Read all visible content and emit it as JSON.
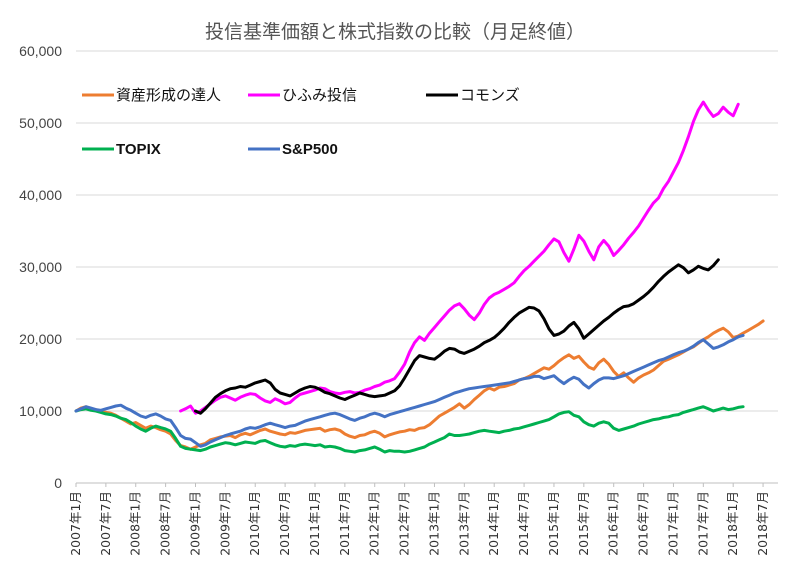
{
  "chart_data": {
    "type": "line",
    "title": "投信基準価額と株式指数の比較（月足終値）",
    "xlabel": "",
    "ylabel": "",
    "ylim": [
      0,
      60000
    ],
    "yticks": [
      0,
      10000,
      20000,
      30000,
      40000,
      50000,
      60000
    ],
    "ytick_labels": [
      "0",
      "10,000",
      "20,000",
      "30,000",
      "40,000",
      "50,000",
      "60,000"
    ],
    "grid": true,
    "legend_placement": "top-left, inside plot",
    "x_start": "2007-01",
    "x_end": "2018-10",
    "x_tick_labels": [
      "2007年1月",
      "2007年7月",
      "2008年1月",
      "2008年7月",
      "2009年1月",
      "2009年7月",
      "2010年1月",
      "2010年7月",
      "2011年1月",
      "2011年7月",
      "2012年1月",
      "2012年7月",
      "2013年1月",
      "2013年7月",
      "2014年1月",
      "2014年7月",
      "2015年1月",
      "2015年7月",
      "2016年1月",
      "2016年7月",
      "2017年1月",
      "2017年7月",
      "2018年1月",
      "2018年7月"
    ],
    "series": [
      {
        "name": "資産形成の達人",
        "color": "#ED7D31",
        "start": "2007-01",
        "values": [
          10000,
          10400,
          10600,
          10300,
          10200,
          9900,
          9800,
          9700,
          9400,
          9000,
          8600,
          8200,
          8400,
          8000,
          7600,
          7900,
          7700,
          7400,
          7200,
          6800,
          5900,
          5200,
          5000,
          4700,
          5000,
          5300,
          5500,
          6000,
          6200,
          6400,
          6500,
          6600,
          6300,
          6700,
          6900,
          6700,
          7000,
          7300,
          7500,
          7200,
          7000,
          6800,
          6700,
          7000,
          6900,
          7100,
          7300,
          7400,
          7500,
          7600,
          7200,
          7400,
          7500,
          7300,
          6800,
          6500,
          6300,
          6600,
          6700,
          7000,
          7200,
          6900,
          6400,
          6700,
          6900,
          7100,
          7200,
          7400,
          7300,
          7600,
          7700,
          8100,
          8700,
          9300,
          9700,
          10100,
          10500,
          11000,
          10400,
          10900,
          11600,
          12200,
          12800,
          13200,
          12900,
          13300,
          13400,
          13600,
          13800,
          14300,
          14500,
          14800,
          15200,
          15600,
          16000,
          15800,
          16300,
          16900,
          17400,
          17800,
          17300,
          17600,
          16800,
          16100,
          15800,
          16700,
          17200,
          16500,
          15500,
          14800,
          15300,
          14600,
          14000,
          14600,
          15000,
          15300,
          15700,
          16300,
          16900,
          17200,
          17500,
          17800,
          18200,
          18600,
          18900,
          19400,
          19900,
          20300,
          20800,
          21200,
          21500,
          21000,
          20200,
          20400,
          20800,
          21200,
          21600,
          22000,
          22500
        ]
      },
      {
        "name": "ひふみ投信",
        "color": "#FF00FF",
        "start": "2008-10",
        "values": [
          10000,
          10300,
          10700,
          9700,
          10000,
          10500,
          11000,
          11500,
          11900,
          12100,
          11800,
          11500,
          11900,
          12200,
          12400,
          12300,
          11800,
          11400,
          11200,
          11700,
          11400,
          11000,
          11200,
          11800,
          12300,
          12500,
          12700,
          12900,
          13200,
          13100,
          12700,
          12500,
          12400,
          12600,
          12700,
          12500,
          12600,
          12900,
          13100,
          13400,
          13600,
          14000,
          14200,
          14500,
          15400,
          16500,
          18200,
          19500,
          20300,
          19800,
          20800,
          21600,
          22400,
          23200,
          24000,
          24600,
          24900,
          24200,
          23300,
          22700,
          23600,
          24800,
          25700,
          26200,
          26500,
          26900,
          27300,
          27800,
          28700,
          29500,
          30100,
          30800,
          31500,
          32200,
          33100,
          33900,
          33500,
          32000,
          30800,
          32500,
          34400,
          33600,
          32200,
          31000,
          32800,
          33700,
          32900,
          31600,
          32300,
          33100,
          34000,
          34800,
          35700,
          36800,
          37900,
          38900,
          39600,
          40900,
          41900,
          43200,
          44500,
          46200,
          48100,
          50200,
          51800,
          52900,
          51800,
          50900,
          51300,
          52200,
          51500,
          51000,
          52600
        ]
      },
      {
        "name": "コモンズ",
        "color": "#000000",
        "start": "2009-01",
        "values": [
          10000,
          9700,
          10300,
          11100,
          11900,
          12400,
          12800,
          13100,
          13200,
          13400,
          13300,
          13600,
          13900,
          14100,
          14300,
          13900,
          13000,
          12500,
          12300,
          12100,
          12500,
          12900,
          13200,
          13400,
          13300,
          13000,
          12600,
          12400,
          12100,
          11800,
          11600,
          11900,
          12200,
          12500,
          12300,
          12100,
          12000,
          12100,
          12200,
          12500,
          12800,
          13500,
          14600,
          15800,
          17000,
          17700,
          17500,
          17300,
          17200,
          17700,
          18300,
          18700,
          18600,
          18200,
          18000,
          18300,
          18600,
          19000,
          19500,
          19800,
          20200,
          20800,
          21500,
          22300,
          23000,
          23600,
          24000,
          24400,
          24300,
          23900,
          22800,
          21400,
          20500,
          20700,
          21100,
          21800,
          22300,
          21400,
          20100,
          20700,
          21300,
          21900,
          22500,
          23000,
          23600,
          24100,
          24500,
          24600,
          24900,
          25400,
          25900,
          26500,
          27200,
          28000,
          28700,
          29300,
          29800,
          30300,
          29900,
          29200,
          29600,
          30100,
          29800,
          29600,
          30200,
          31000
        ]
      },
      {
        "name": "TOPIX",
        "color": "#00B050",
        "start": "2007-01",
        "values": [
          10000,
          10200,
          10300,
          10100,
          10000,
          9800,
          9600,
          9500,
          9300,
          9000,
          8800,
          8400,
          7900,
          7500,
          7200,
          7600,
          7900,
          7700,
          7500,
          7200,
          6200,
          5100,
          4800,
          4700,
          4600,
          4500,
          4700,
          5000,
          5200,
          5400,
          5600,
          5500,
          5300,
          5500,
          5700,
          5600,
          5500,
          5800,
          5900,
          5600,
          5300,
          5100,
          5000,
          5200,
          5100,
          5300,
          5400,
          5300,
          5200,
          5300,
          5000,
          5100,
          5000,
          4800,
          4500,
          4400,
          4300,
          4500,
          4600,
          4800,
          5000,
          4700,
          4300,
          4500,
          4400,
          4400,
          4300,
          4400,
          4600,
          4800,
          5000,
          5400,
          5700,
          6000,
          6300,
          6800,
          6600,
          6600,
          6700,
          6800,
          7000,
          7200,
          7300,
          7200,
          7100,
          7000,
          7200,
          7300,
          7500,
          7600,
          7800,
          8000,
          8200,
          8400,
          8600,
          8800,
          9200,
          9600,
          9800,
          9900,
          9400,
          9200,
          8500,
          8100,
          7900,
          8300,
          8500,
          8300,
          7600,
          7300,
          7500,
          7700,
          7900,
          8200,
          8400,
          8600,
          8800,
          8900,
          9100,
          9200,
          9400,
          9500,
          9800,
          10000,
          10200,
          10400,
          10600,
          10300,
          10000,
          10200,
          10400,
          10200,
          10300,
          10500,
          10600
        ]
      },
      {
        "name": "S&P500",
        "color": "#4472C4",
        "start": "2007-01",
        "values": [
          10000,
          10300,
          10600,
          10400,
          10200,
          10100,
          10300,
          10500,
          10700,
          10800,
          10400,
          10100,
          9700,
          9300,
          9100,
          9400,
          9600,
          9300,
          8900,
          8700,
          7700,
          6600,
          6200,
          6100,
          5600,
          5100,
          5300,
          5700,
          6000,
          6300,
          6600,
          6800,
          7000,
          7200,
          7500,
          7700,
          7600,
          7800,
          8100,
          8300,
          8100,
          7900,
          7700,
          7900,
          8000,
          8300,
          8600,
          8800,
          9000,
          9200,
          9400,
          9600,
          9700,
          9500,
          9200,
          8900,
          8700,
          9000,
          9200,
          9500,
          9700,
          9500,
          9200,
          9500,
          9700,
          9900,
          10100,
          10300,
          10500,
          10700,
          10900,
          11100,
          11300,
          11600,
          11900,
          12200,
          12500,
          12700,
          12900,
          13100,
          13200,
          13300,
          13400,
          13500,
          13600,
          13700,
          13800,
          13900,
          14100,
          14300,
          14500,
          14600,
          14800,
          14800,
          14500,
          14700,
          14900,
          14300,
          13800,
          14300,
          14700,
          14400,
          13700,
          13200,
          13800,
          14300,
          14600,
          14600,
          14500,
          14700,
          14900,
          15200,
          15500,
          15800,
          16100,
          16400,
          16700,
          17000,
          17200,
          17500,
          17800,
          18100,
          18300,
          18600,
          19000,
          19500,
          19900,
          19300,
          18700,
          18900,
          19200,
          19600,
          19900,
          20300,
          20500
        ]
      }
    ]
  }
}
